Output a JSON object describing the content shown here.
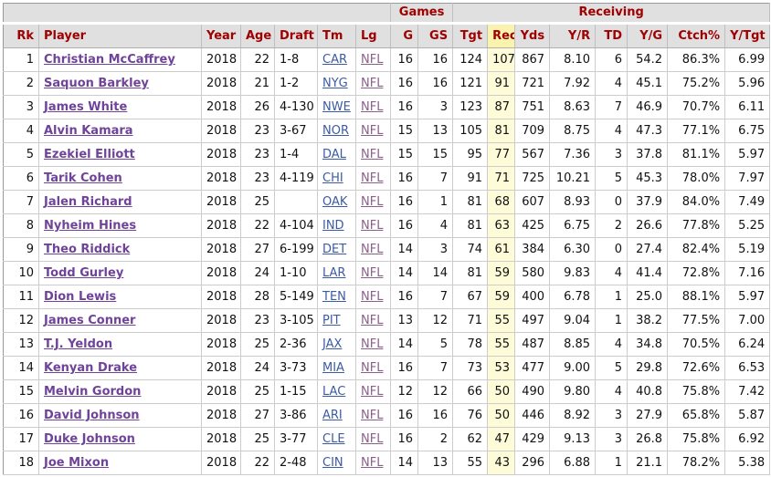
{
  "colors": {
    "header_text": "#a00000",
    "header_bg": "#e0e0e0",
    "cell_border": "#cccccc",
    "outer_border": "#999999",
    "player_link": "#70439a",
    "team_link": "#3b5ba5",
    "league_link": "#8b5f8b",
    "hl_header": "#faf3ae",
    "hl_cell": "#fdfbd8",
    "text": "#111111"
  },
  "table": {
    "group_headers": [
      {
        "label": "",
        "span": 7
      },
      {
        "label": "Games",
        "span": 2
      },
      {
        "label": "Receiving",
        "span": 8
      }
    ],
    "columns": [
      "Rk",
      "Player",
      "Year",
      "Age",
      "Draft",
      "Tm",
      "Lg",
      "G",
      "GS",
      "Tgt",
      "Rec",
      "Yds",
      "Y/R",
      "TD",
      "Y/G",
      "Ctch%",
      "Y/Tgt"
    ],
    "sorted_column": "Rec",
    "rows": [
      [
        "1",
        "Christian McCaffrey",
        "2018",
        "22",
        "1-8",
        "CAR",
        "NFL",
        "16",
        "16",
        "124",
        "107",
        "867",
        "8.10",
        "6",
        "54.2",
        "86.3%",
        "6.99"
      ],
      [
        "2",
        "Saquon Barkley",
        "2018",
        "21",
        "1-2",
        "NYG",
        "NFL",
        "16",
        "16",
        "121",
        "91",
        "721",
        "7.92",
        "4",
        "45.1",
        "75.2%",
        "5.96"
      ],
      [
        "3",
        "James White",
        "2018",
        "26",
        "4-130",
        "NWE",
        "NFL",
        "16",
        "3",
        "123",
        "87",
        "751",
        "8.63",
        "7",
        "46.9",
        "70.7%",
        "6.11"
      ],
      [
        "4",
        "Alvin Kamara",
        "2018",
        "23",
        "3-67",
        "NOR",
        "NFL",
        "15",
        "13",
        "105",
        "81",
        "709",
        "8.75",
        "4",
        "47.3",
        "77.1%",
        "6.75"
      ],
      [
        "5",
        "Ezekiel Elliott",
        "2018",
        "23",
        "1-4",
        "DAL",
        "NFL",
        "15",
        "15",
        "95",
        "77",
        "567",
        "7.36",
        "3",
        "37.8",
        "81.1%",
        "5.97"
      ],
      [
        "6",
        "Tarik Cohen",
        "2018",
        "23",
        "4-119",
        "CHI",
        "NFL",
        "16",
        "7",
        "91",
        "71",
        "725",
        "10.21",
        "5",
        "45.3",
        "78.0%",
        "7.97"
      ],
      [
        "7",
        "Jalen Richard",
        "2018",
        "25",
        "",
        "OAK",
        "NFL",
        "16",
        "1",
        "81",
        "68",
        "607",
        "8.93",
        "0",
        "37.9",
        "84.0%",
        "7.49"
      ],
      [
        "8",
        "Nyheim Hines",
        "2018",
        "22",
        "4-104",
        "IND",
        "NFL",
        "16",
        "4",
        "81",
        "63",
        "425",
        "6.75",
        "2",
        "26.6",
        "77.8%",
        "5.25"
      ],
      [
        "9",
        "Theo Riddick",
        "2018",
        "27",
        "6-199",
        "DET",
        "NFL",
        "14",
        "3",
        "74",
        "61",
        "384",
        "6.30",
        "0",
        "27.4",
        "82.4%",
        "5.19"
      ],
      [
        "10",
        "Todd Gurley",
        "2018",
        "24",
        "1-10",
        "LAR",
        "NFL",
        "14",
        "14",
        "81",
        "59",
        "580",
        "9.83",
        "4",
        "41.4",
        "72.8%",
        "7.16"
      ],
      [
        "11",
        "Dion Lewis",
        "2018",
        "28",
        "5-149",
        "TEN",
        "NFL",
        "16",
        "7",
        "67",
        "59",
        "400",
        "6.78",
        "1",
        "25.0",
        "88.1%",
        "5.97"
      ],
      [
        "12",
        "James Conner",
        "2018",
        "23",
        "3-105",
        "PIT",
        "NFL",
        "13",
        "12",
        "71",
        "55",
        "497",
        "9.04",
        "1",
        "38.2",
        "77.5%",
        "7.00"
      ],
      [
        "13",
        "T.J. Yeldon",
        "2018",
        "25",
        "2-36",
        "JAX",
        "NFL",
        "14",
        "5",
        "78",
        "55",
        "487",
        "8.85",
        "4",
        "34.8",
        "70.5%",
        "6.24"
      ],
      [
        "14",
        "Kenyan Drake",
        "2018",
        "24",
        "3-73",
        "MIA",
        "NFL",
        "16",
        "7",
        "73",
        "53",
        "477",
        "9.00",
        "5",
        "29.8",
        "72.6%",
        "6.53"
      ],
      [
        "15",
        "Melvin Gordon",
        "2018",
        "25",
        "1-15",
        "LAC",
        "NFL",
        "12",
        "12",
        "66",
        "50",
        "490",
        "9.80",
        "4",
        "40.8",
        "75.8%",
        "7.42"
      ],
      [
        "16",
        "David Johnson",
        "2018",
        "27",
        "3-86",
        "ARI",
        "NFL",
        "16",
        "16",
        "76",
        "50",
        "446",
        "8.92",
        "3",
        "27.9",
        "65.8%",
        "5.87"
      ],
      [
        "17",
        "Duke Johnson",
        "2018",
        "25",
        "3-77",
        "CLE",
        "NFL",
        "16",
        "2",
        "62",
        "47",
        "429",
        "9.13",
        "3",
        "26.8",
        "75.8%",
        "6.92"
      ],
      [
        "18",
        "Joe Mixon",
        "2018",
        "22",
        "2-48",
        "CIN",
        "NFL",
        "14",
        "13",
        "55",
        "43",
        "296",
        "6.88",
        "1",
        "21.1",
        "78.2%",
        "5.38"
      ]
    ]
  }
}
